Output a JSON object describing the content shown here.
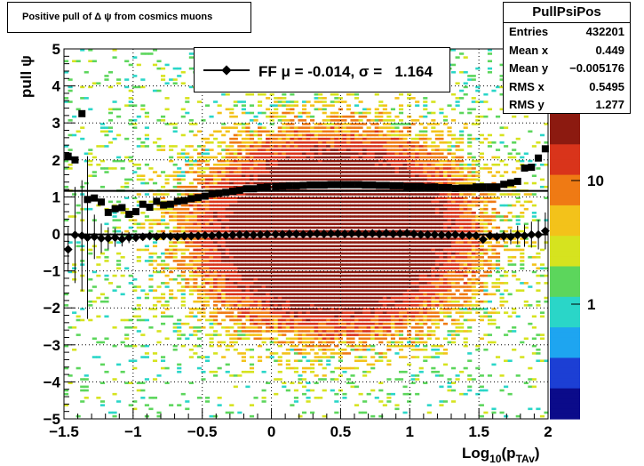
{
  "title": "Positive pull of Δ ψ from cosmics muons",
  "stats": {
    "name": "PullPsiPos",
    "rows": [
      {
        "key": "Entries",
        "value": "432201"
      },
      {
        "key": "Mean x",
        "value": "0.449"
      },
      {
        "key": "Mean y",
        "value": "−0.005176"
      },
      {
        "key": "RMS x",
        "value": "0.5495"
      },
      {
        "key": "RMS y",
        "value": "1.277"
      }
    ]
  },
  "legend": {
    "text": "FF μ = -0.014, σ =   1.164"
  },
  "colors": {
    "marker": "#000000",
    "palette": [
      "#0b0b8a",
      "#1c3fd4",
      "#1ea5f0",
      "#2ad6c8",
      "#5cd65c",
      "#d6e31f",
      "#f3c21a",
      "#ef7a14",
      "#d9341b",
      "#8c1a10"
    ]
  },
  "chart_data": {
    "type": "heatmap",
    "title": "Positive pull of Δ ψ from cosmics muons",
    "xlabel": "Log10(pTAv)",
    "ylabel": "pull ψ",
    "xlim": [
      -1.5,
      2
    ],
    "ylim": [
      -5,
      5
    ],
    "x_ticks": [
      "−1.5",
      "−1",
      "−0.5",
      "0",
      "0.5",
      "1",
      "1.5",
      "2"
    ],
    "y_ticks": [
      "−5",
      "−4",
      "−3",
      "−2",
      "−1",
      "0",
      "1",
      "2",
      "3",
      "4",
      "5"
    ],
    "z_scale": "log",
    "z_ticks": [
      "1",
      "10"
    ],
    "grid": true,
    "heatmap_center": {
      "x": 0.45,
      "y": 0.0
    },
    "heatmap_spread": {
      "x": 0.55,
      "y": 1.28
    },
    "profile_mean": {
      "name": "mean",
      "x": [
        -1.47,
        -1.42,
        -1.37,
        -1.33,
        -1.28,
        -1.23,
        -1.18,
        -1.13,
        -1.08,
        -1.03,
        -0.98,
        -0.93,
        -0.88,
        -0.83,
        -0.78,
        -0.73,
        -0.68,
        -0.63,
        -0.58,
        -0.53,
        -0.48,
        -0.43,
        -0.38,
        -0.33,
        -0.28,
        -0.23,
        -0.18,
        -0.13,
        -0.08,
        -0.03,
        0.03,
        0.08,
        0.13,
        0.18,
        0.23,
        0.28,
        0.33,
        0.38,
        0.43,
        0.48,
        0.53,
        0.58,
        0.63,
        0.68,
        0.73,
        0.78,
        0.83,
        0.88,
        0.93,
        0.98,
        1.03,
        1.08,
        1.13,
        1.18,
        1.23,
        1.28,
        1.33,
        1.38,
        1.43,
        1.48,
        1.53,
        1.58,
        1.63,
        1.68,
        1.73,
        1.78,
        1.83,
        1.88,
        1.93,
        1.98
      ],
      "y": [
        -0.42,
        -0.03,
        -0.05,
        -0.1,
        -0.08,
        -0.12,
        -0.12,
        -0.1,
        -0.14,
        -0.1,
        -0.1,
        -0.08,
        -0.06,
        -0.08,
        -0.06,
        -0.07,
        -0.08,
        -0.06,
        -0.06,
        -0.05,
        -0.04,
        -0.05,
        -0.03,
        -0.04,
        -0.03,
        -0.02,
        -0.02,
        -0.03,
        -0.02,
        -0.01,
        -0.01,
        -0.01,
        0.0,
        0.0,
        -0.01,
        0.0,
        0.01,
        0.0,
        0.01,
        0.01,
        0.0,
        0.01,
        0.01,
        0.0,
        0.01,
        0.0,
        0.02,
        0.0,
        0.01,
        0.02,
        0.0,
        -0.02,
        -0.02,
        -0.02,
        -0.03,
        -0.03,
        -0.02,
        -0.04,
        -0.04,
        -0.05,
        -0.15,
        -0.05,
        -0.08,
        -0.06,
        -0.08,
        -0.03,
        -0.05,
        -0.02,
        -0.02,
        0.08
      ],
      "yerr": [
        0.6,
        1.3,
        1.5,
        2.2,
        0.6,
        0.4,
        0.3,
        0.25,
        0.2,
        0.15,
        0.12,
        0.1,
        0.08,
        0.07,
        0.06,
        0.05,
        0.04,
        0.04,
        0.03,
        0.03,
        0.03,
        0.02,
        0.02,
        0.02,
        0.02,
        0.02,
        0.02,
        0.02,
        0.02,
        0.02,
        0.02,
        0.02,
        0.02,
        0.02,
        0.02,
        0.02,
        0.02,
        0.02,
        0.02,
        0.02,
        0.02,
        0.02,
        0.02,
        0.02,
        0.02,
        0.02,
        0.02,
        0.02,
        0.02,
        0.02,
        0.02,
        0.02,
        0.02,
        0.02,
        0.03,
        0.03,
        0.03,
        0.04,
        0.05,
        0.06,
        0.08,
        0.1,
        0.12,
        0.15,
        0.2,
        0.25,
        0.3,
        0.35,
        0.4,
        0.5
      ]
    },
    "profile_rms": {
      "name": "rms",
      "x": [
        -1.47,
        -1.42,
        -1.37,
        -1.33,
        -1.28,
        -1.23,
        -1.18,
        -1.13,
        -1.08,
        -1.03,
        -0.98,
        -0.93,
        -0.88,
        -0.83,
        -0.78,
        -0.73,
        -0.68,
        -0.63,
        -0.58,
        -0.53,
        -0.48,
        -0.43,
        -0.38,
        -0.33,
        -0.28,
        -0.23,
        -0.18,
        -0.13,
        -0.08,
        -0.03,
        0.03,
        0.08,
        0.13,
        0.18,
        0.23,
        0.28,
        0.33,
        0.38,
        0.43,
        0.48,
        0.53,
        0.58,
        0.63,
        0.68,
        0.73,
        0.78,
        0.83,
        0.88,
        0.93,
        0.98,
        1.03,
        1.08,
        1.13,
        1.18,
        1.23,
        1.28,
        1.33,
        1.38,
        1.43,
        1.48,
        1.53,
        1.58,
        1.63,
        1.68,
        1.73,
        1.78,
        1.83,
        1.88,
        1.93,
        1.98
      ],
      "y": [
        2.1,
        2.0,
        3.25,
        0.93,
        0.97,
        0.86,
        0.58,
        0.68,
        0.71,
        0.53,
        0.6,
        0.8,
        0.72,
        0.88,
        0.78,
        0.8,
        0.88,
        0.9,
        0.95,
        0.98,
        1.02,
        1.08,
        1.1,
        1.12,
        1.15,
        1.18,
        1.22,
        1.22,
        1.25,
        1.27,
        1.28,
        1.29,
        1.3,
        1.3,
        1.31,
        1.32,
        1.32,
        1.32,
        1.33,
        1.33,
        1.33,
        1.33,
        1.33,
        1.32,
        1.32,
        1.31,
        1.31,
        1.3,
        1.3,
        1.28,
        1.28,
        1.28,
        1.26,
        1.27,
        1.25,
        1.25,
        1.23,
        1.24,
        1.24,
        1.27,
        1.27,
        1.27,
        1.27,
        1.34,
        1.38,
        1.42,
        1.78,
        1.8,
        2.05,
        2.3
      ]
    },
    "fit_line_upper": {
      "y": 1.164
    },
    "fit_line_lower": {
      "y": -0.014
    }
  }
}
